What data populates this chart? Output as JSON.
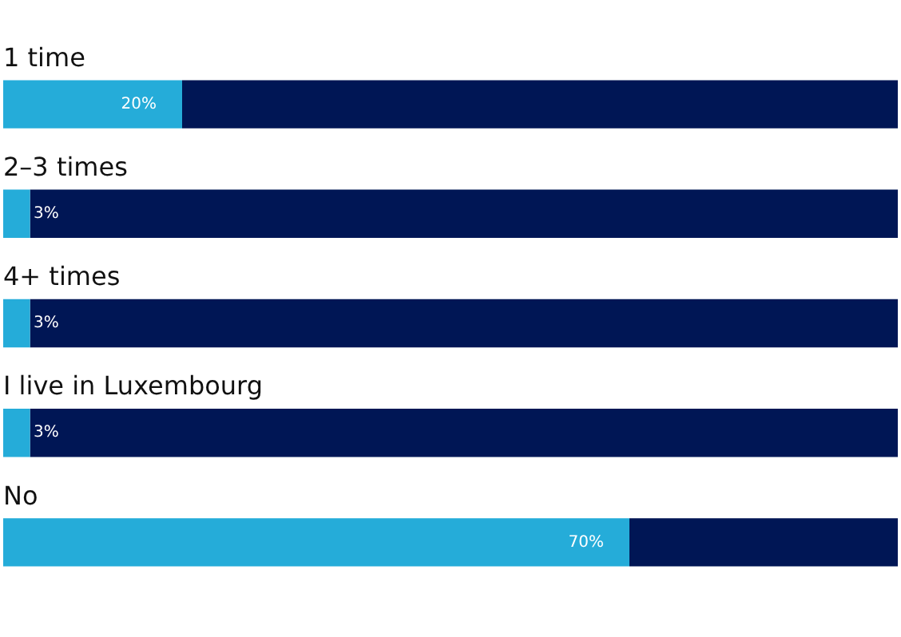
{
  "chart_data": {
    "type": "bar",
    "orientation": "horizontal",
    "stacked": true,
    "categories": [
      "1 time",
      "2–3 times",
      "4+ times",
      "I live in Luxembourg",
      "No"
    ],
    "series": [
      {
        "color": "#25acd9",
        "values": [
          20,
          3,
          3,
          3,
          70
        ],
        "value_labels": [
          "20%",
          "3%",
          "3%",
          "3%",
          "70%"
        ]
      },
      {
        "color": "#001655",
        "values": [
          80,
          97,
          97,
          97,
          30
        ]
      }
    ],
    "xlim": [
      0,
      100
    ],
    "tick_labels": "y",
    "legend": false
  }
}
